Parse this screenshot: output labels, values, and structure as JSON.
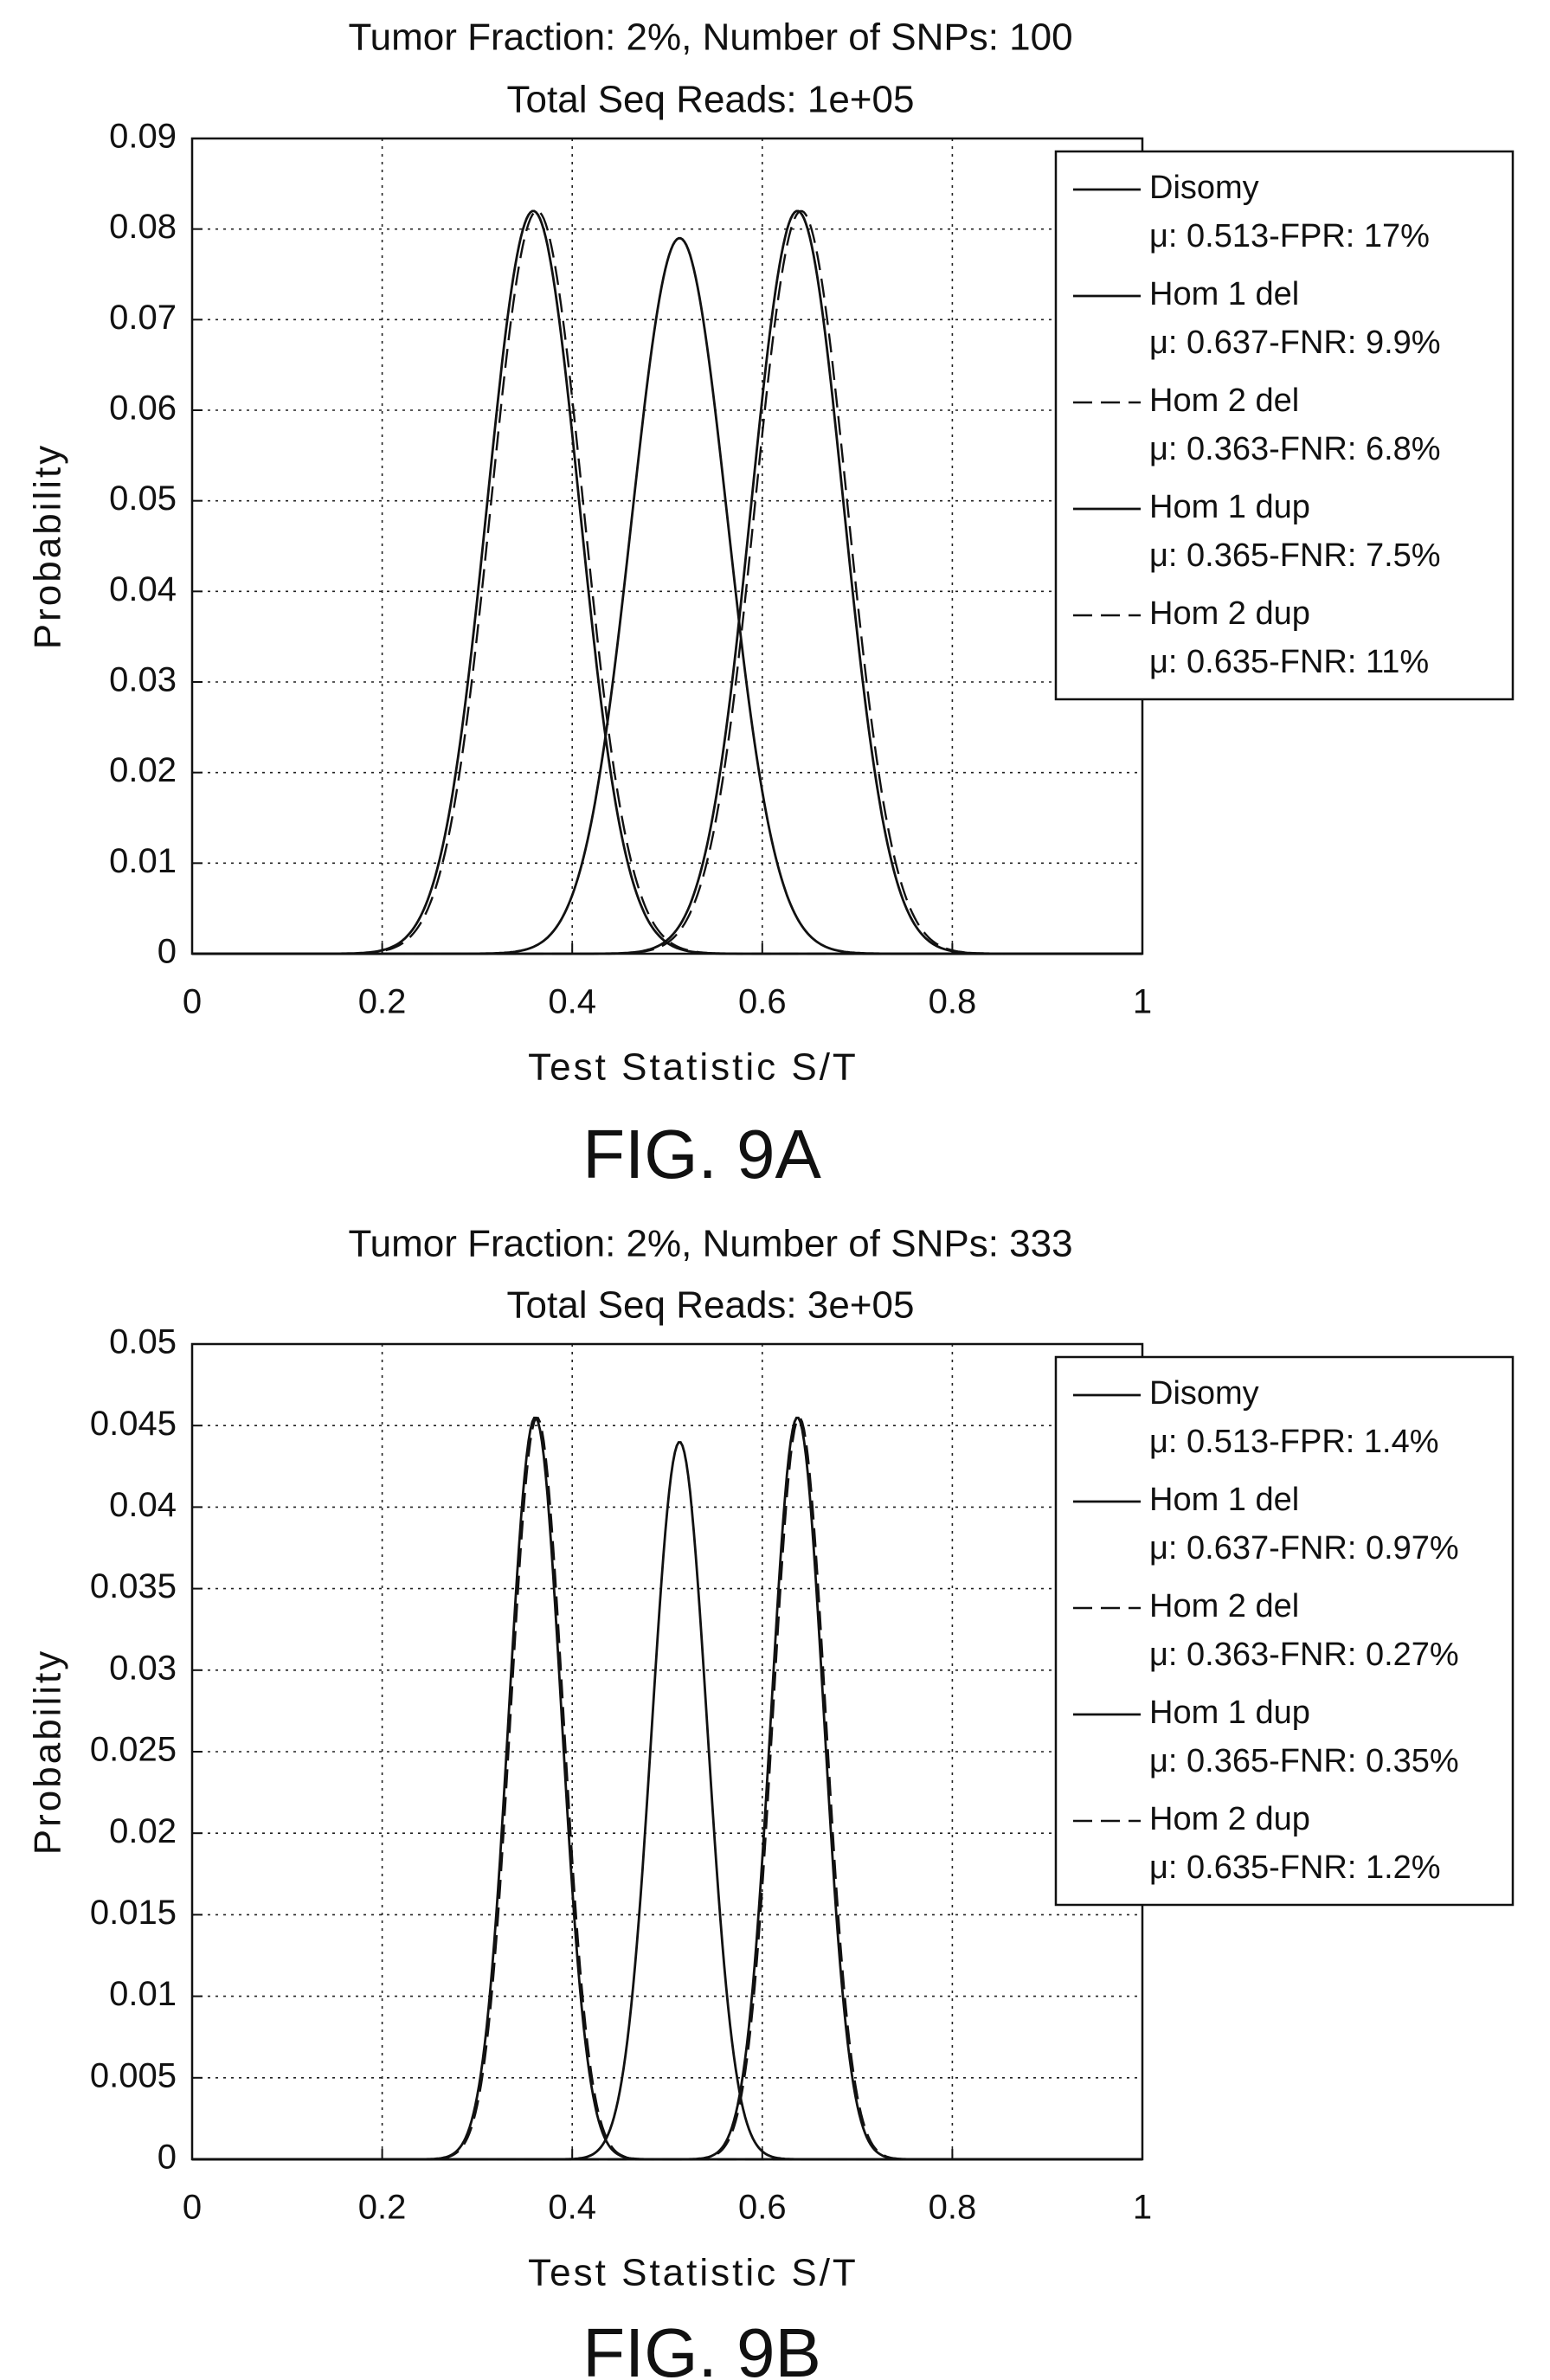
{
  "chart_data": [
    {
      "type": "line",
      "title": "Tumor Fraction: 2%, Number of SNPs: 100",
      "subtitle": "Total Seq Reads: 1e+05",
      "xlabel": "Test Statistic S/T",
      "ylabel": "Probability",
      "figure_label": "FIG. 9A",
      "xlim": [
        0,
        1
      ],
      "ylim": [
        0,
        0.09
      ],
      "xticks": [
        "0",
        "0.2",
        "0.4",
        "0.6",
        "0.8",
        "1"
      ],
      "yticks": [
        "0",
        "0.01",
        "0.02",
        "0.03",
        "0.04",
        "0.05",
        "0.06",
        "0.07",
        "0.08",
        "0.09"
      ],
      "grid": true,
      "legend_position": "top-right",
      "series": [
        {
          "name": "Disomy",
          "detail": "μ: 0.513-FPR: 17%",
          "style": "solid",
          "mu": 0.513,
          "peak": 0.079,
          "sd": 0.0505
        },
        {
          "name": "Hom 1 del",
          "detail": "μ: 0.637-FNR: 9.9%",
          "style": "solid",
          "mu": 0.637,
          "peak": 0.082,
          "sd": 0.0485
        },
        {
          "name": "Hom 2 del",
          "detail": "μ: 0.363-FNR: 6.8%",
          "style": "dashed",
          "mu": 0.363,
          "peak": 0.082,
          "sd": 0.0485
        },
        {
          "name": "Hom 1 dup",
          "detail": "μ: 0.365-FNR: 7.5%",
          "style": "solid",
          "mu": 0.359,
          "peak": 0.082,
          "sd": 0.0485
        },
        {
          "name": "Hom 2 dup",
          "detail": "μ: 0.635-FNR: 11%",
          "style": "dashed",
          "mu": 0.641,
          "peak": 0.082,
          "sd": 0.0485
        }
      ]
    },
    {
      "type": "line",
      "title": "Tumor Fraction: 2%, Number of SNPs: 333",
      "subtitle": "Total Seq Reads: 3e+05",
      "xlabel": "Test Statistic S/T",
      "ylabel": "Probability",
      "figure_label": "FIG. 9B",
      "xlim": [
        0,
        1
      ],
      "ylim": [
        0,
        0.05
      ],
      "xticks": [
        "0",
        "0.2",
        "0.4",
        "0.6",
        "0.8",
        "1"
      ],
      "yticks": [
        "0",
        "0.005",
        "0.01",
        "0.015",
        "0.02",
        "0.025",
        "0.03",
        "0.035",
        "0.04",
        "0.045",
        "0.05"
      ],
      "grid": true,
      "legend_position": "top-right",
      "series": [
        {
          "name": "Disomy",
          "detail": "μ: 0.513-FPR: 1.4%",
          "style": "solid",
          "mu": 0.513,
          "peak": 0.044,
          "sd": 0.029
        },
        {
          "name": "Hom 1 del",
          "detail": "μ: 0.637-FNR: 0.97%",
          "style": "solid",
          "mu": 0.637,
          "peak": 0.0455,
          "sd": 0.0275
        },
        {
          "name": "Hom 2 del",
          "detail": "μ: 0.363-FNR: 0.27%",
          "style": "dashed",
          "mu": 0.363,
          "peak": 0.0455,
          "sd": 0.0275
        },
        {
          "name": "Hom 1 dup",
          "detail": "μ: 0.365-FNR: 0.35%",
          "style": "solid",
          "mu": 0.361,
          "peak": 0.0455,
          "sd": 0.0275
        },
        {
          "name": "Hom 2 dup",
          "detail": "μ: 0.635-FNR: 1.2%",
          "style": "dashed",
          "mu": 0.639,
          "peak": 0.0455,
          "sd": 0.0275
        }
      ]
    }
  ]
}
